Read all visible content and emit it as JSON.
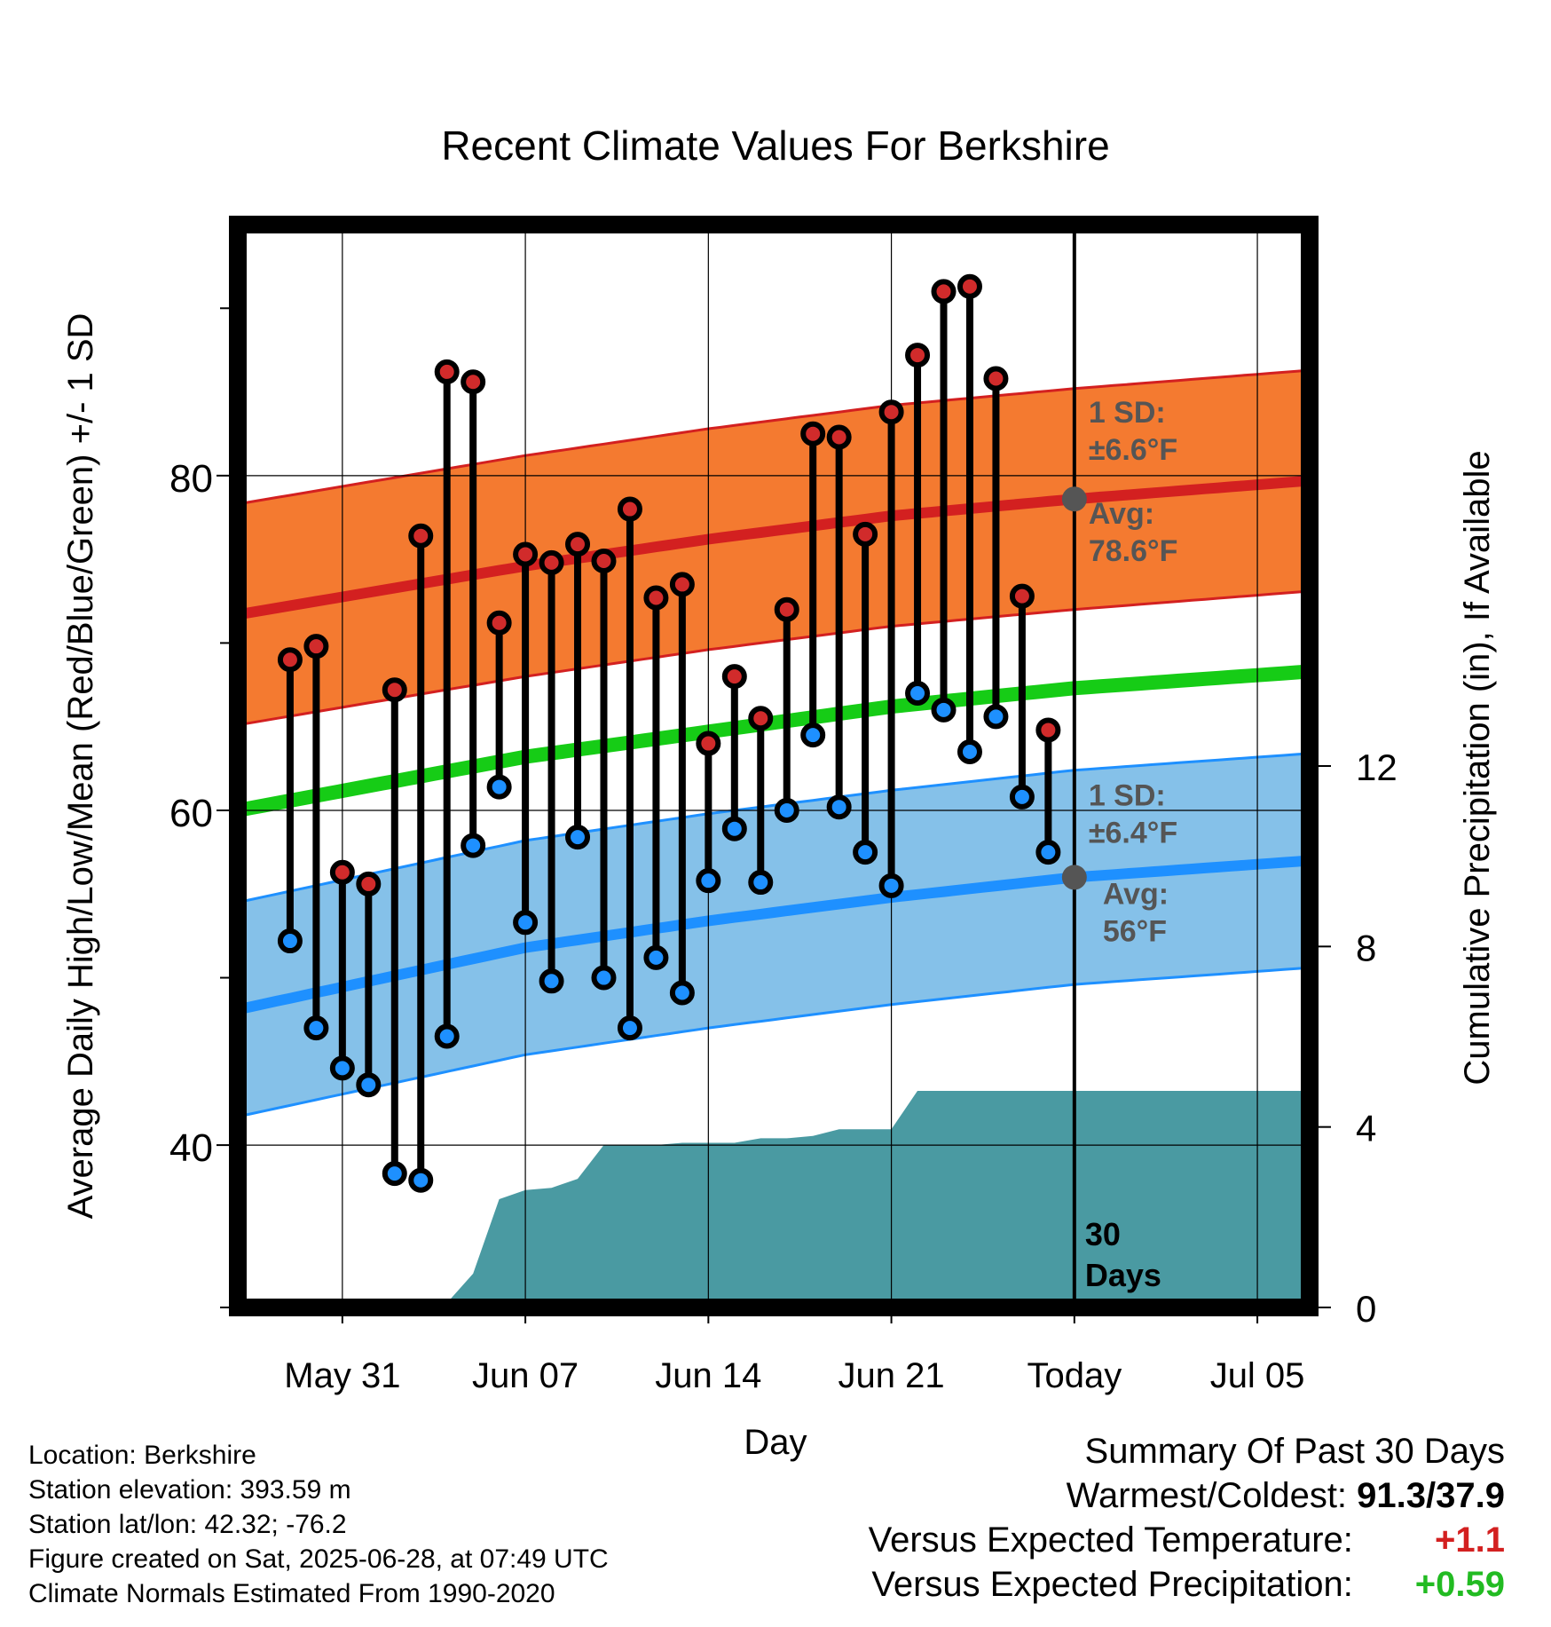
{
  "chart_data": {
    "type": "line",
    "title": "Recent Climate Values For Berkshire",
    "xlabel": "Day",
    "ylabel": "Average Daily High/Low/Mean (Red/Blue/Green) +/- 1 SD",
    "y2label": "Cumulative Precipitation (in), If Available",
    "xlim": [
      "2025-05-27",
      "2025-07-07"
    ],
    "ylim": [
      30.3,
      95
    ],
    "y2lim": [
      0,
      24
    ],
    "x_ticks": [
      {
        "date": "2025-05-31",
        "label": "May 31"
      },
      {
        "date": "2025-06-07",
        "label": "Jun 07"
      },
      {
        "date": "2025-06-14",
        "label": "Jun 14"
      },
      {
        "date": "2025-06-21",
        "label": "Jun 21"
      },
      {
        "date": "2025-06-28",
        "label": "Today"
      },
      {
        "date": "2025-07-05",
        "label": "Jul 05"
      }
    ],
    "y_ticks": [
      40,
      60,
      80
    ],
    "y_minor_ticks": [
      30.3,
      50,
      70,
      90
    ],
    "y2_ticks": [
      0,
      4,
      8,
      12
    ],
    "grid": true,
    "normals": {
      "dates": [
        "2025-05-27",
        "2025-06-07",
        "2025-06-14",
        "2025-06-21",
        "2025-06-28",
        "2025-07-07"
      ],
      "high_avg": [
        71.7,
        74.6,
        76.2,
        77.6,
        78.6,
        79.7
      ],
      "high_sd": 6.6,
      "mean_avg": [
        60.0,
        63.2,
        64.7,
        66.2,
        67.3,
        68.3
      ],
      "low_avg": [
        48.1,
        51.8,
        53.4,
        54.8,
        56.0,
        57.0
      ],
      "low_sd": 6.4
    },
    "daily": {
      "dates": [
        "2025-05-29",
        "2025-05-30",
        "2025-05-31",
        "2025-06-01",
        "2025-06-02",
        "2025-06-03",
        "2025-06-04",
        "2025-06-05",
        "2025-06-06",
        "2025-06-07",
        "2025-06-08",
        "2025-06-09",
        "2025-06-10",
        "2025-06-11",
        "2025-06-12",
        "2025-06-13",
        "2025-06-14",
        "2025-06-15",
        "2025-06-16",
        "2025-06-17",
        "2025-06-18",
        "2025-06-19",
        "2025-06-20",
        "2025-06-21",
        "2025-06-22",
        "2025-06-23",
        "2025-06-24",
        "2025-06-25",
        "2025-06-26",
        "2025-06-27"
      ],
      "high": [
        69.0,
        69.8,
        56.3,
        55.6,
        67.2,
        76.4,
        86.2,
        85.6,
        71.2,
        75.3,
        74.8,
        75.9,
        74.9,
        78.0,
        72.7,
        73.5,
        64.0,
        68.0,
        65.5,
        72.0,
        82.5,
        82.3,
        76.5,
        83.8,
        87.2,
        91.0,
        91.3,
        85.8,
        72.8,
        64.8
      ],
      "low": [
        52.2,
        47.0,
        44.6,
        43.6,
        38.3,
        37.9,
        46.5,
        57.9,
        61.4,
        53.3,
        49.8,
        58.4,
        50.0,
        47.0,
        51.2,
        49.1,
        55.8,
        58.9,
        55.7,
        60.0,
        64.5,
        60.2,
        57.5,
        55.5,
        67.0,
        66.0,
        63.5,
        65.6,
        60.8,
        57.5
      ]
    },
    "precip_cumulative": {
      "dates": [
        "2025-05-27",
        "2025-05-30",
        "2025-05-31",
        "2025-06-01",
        "2025-06-03",
        "2025-06-04",
        "2025-06-05",
        "2025-06-06",
        "2025-06-07",
        "2025-06-08",
        "2025-06-09",
        "2025-06-10",
        "2025-06-11",
        "2025-06-12",
        "2025-06-13",
        "2025-06-14",
        "2025-06-15",
        "2025-06-16",
        "2025-06-17",
        "2025-06-18",
        "2025-06-19",
        "2025-06-20",
        "2025-06-21",
        "2025-06-22",
        "2025-06-28",
        "2025-07-07"
      ],
      "values": [
        0,
        0,
        0.05,
        0.1,
        0.1,
        0.1,
        0.75,
        2.4,
        2.6,
        2.65,
        2.85,
        3.6,
        3.6,
        3.6,
        3.65,
        3.65,
        3.65,
        3.75,
        3.75,
        3.8,
        3.95,
        3.95,
        3.95,
        4.8,
        4.8,
        4.8
      ]
    },
    "annotations": {
      "high_sd": "1 SD:",
      "high_sd_value": "±6.6°F",
      "high_avg": "Avg:",
      "high_avg_value": "78.6°F",
      "low_sd": "1 SD:",
      "low_sd_value": "±6.4°F",
      "low_avg": "Avg:",
      "low_avg_value": "56°F",
      "window_count": "30",
      "window_unit": "Days"
    },
    "colors": {
      "high_band": "#f47a30",
      "high_line": "#d32020",
      "mean_line": "#16cc16",
      "low_band": "#85c1e9",
      "low_line": "#1e90ff",
      "precip_fill": "#4a9aa2",
      "high_marker": "#d12b2b",
      "low_marker": "#1e90ff",
      "annotation_text": "#555555"
    }
  },
  "info": {
    "location": "Location: Berkshire",
    "elevation": "Station elevation: 393.59 m",
    "latlon": "Station lat/lon: 42.32; -76.2",
    "created": "Figure created on Sat, 2025-06-28, at 07:49 UTC",
    "normals": "Climate Normals Estimated From 1990-2020"
  },
  "summary": {
    "title": "Summary Of Past 30 Days",
    "warm_cold_label": "Warmest/Coldest:",
    "warm_cold_value": "91.3/37.9",
    "temp_label": "Versus Expected Temperature:",
    "temp_value": "+1.1",
    "temp_color": "#d32020",
    "precip_label": "Versus Expected Precipitation:",
    "precip_value": "+0.59",
    "precip_color": "#22bb22"
  }
}
